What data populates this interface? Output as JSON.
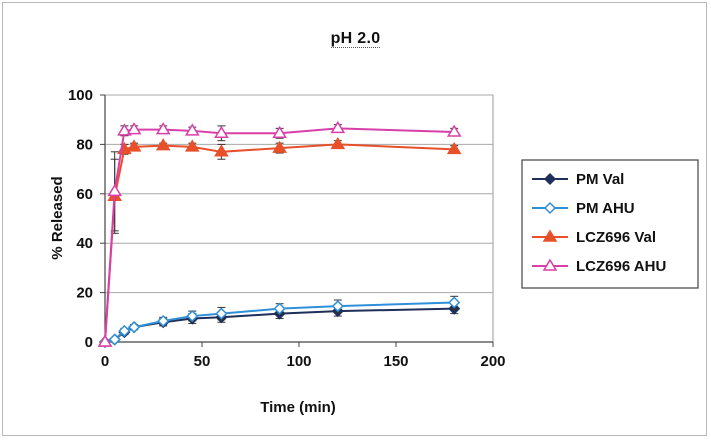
{
  "chart_data": {
    "type": "line",
    "title": "pH 2.0",
    "xlabel": "Time (min)",
    "ylabel": "% Released",
    "xlim": [
      0,
      200
    ],
    "ylim": [
      0,
      100
    ],
    "xticks": [
      0,
      50,
      100,
      150,
      200
    ],
    "yticks": [
      0,
      20,
      40,
      60,
      80,
      100
    ],
    "grid": "horizontal",
    "legend_position": "right",
    "series": [
      {
        "name": "PM Val",
        "color": "#1f2f5a",
        "marker": "diamond-filled",
        "x": [
          0,
          5,
          10,
          15,
          30,
          45,
          60,
          90,
          120,
          180
        ],
        "y": [
          0,
          1,
          4,
          6,
          8,
          9.5,
          10,
          11.5,
          12.5,
          13.5
        ],
        "err": [
          0,
          0,
          1,
          1,
          1.5,
          2,
          2,
          2,
          2,
          2
        ]
      },
      {
        "name": "PM AHU",
        "color": "#2f8fd8",
        "marker": "diamond-open",
        "x": [
          0,
          5,
          10,
          15,
          30,
          45,
          60,
          90,
          120,
          180
        ],
        "y": [
          0,
          1,
          4.5,
          6,
          8.5,
          10.5,
          11.5,
          13.5,
          14.5,
          16
        ],
        "err": [
          0,
          0,
          1,
          1,
          1.5,
          2,
          2.5,
          2,
          2.5,
          2.5
        ]
      },
      {
        "name": "LCZ696 Val",
        "color": "#e8502a",
        "marker": "triangle-filled",
        "x": [
          0,
          5,
          10,
          15,
          30,
          45,
          60,
          90,
          120,
          180
        ],
        "y": [
          0,
          59,
          78,
          79,
          79.5,
          79,
          77,
          78.5,
          80,
          78
        ],
        "err": [
          0,
          15,
          2,
          1.5,
          1,
          1.5,
          3,
          2,
          1.5,
          1.5
        ]
      },
      {
        "name": "LCZ696 AHU",
        "color": "#d83fa8",
        "marker": "triangle-open",
        "x": [
          0,
          5,
          10,
          15,
          30,
          45,
          60,
          90,
          120,
          180
        ],
        "y": [
          0,
          61,
          85.5,
          86,
          86,
          85.5,
          84.5,
          84.5,
          86.5,
          85
        ],
        "err": [
          0,
          16,
          2,
          1.5,
          1.5,
          1.5,
          3,
          2,
          1.5,
          1.5
        ]
      }
    ]
  }
}
